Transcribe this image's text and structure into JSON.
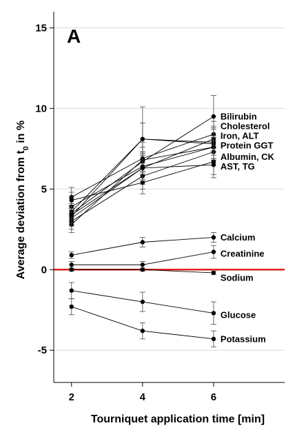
{
  "chart_data": {
    "type": "line",
    "panel_label": "A",
    "xlabel": "Tourniquet application time [min]",
    "ylabel": "Average deviation from t",
    "ylabel_sub": "0",
    "ylabel_suffix": " in %",
    "x": [
      2,
      4,
      6
    ],
    "xlim": [
      1.5,
      8
    ],
    "ylim": [
      -7,
      16
    ],
    "yticks": [
      -5,
      0,
      5,
      10,
      15
    ],
    "xticks": [
      2,
      4,
      6
    ],
    "grid": "horizontal",
    "zero_line_color": "#e0201b",
    "series": [
      {
        "name": "Bilirubin",
        "values": [
          3.5,
          6.7,
          9.5
        ],
        "err": [
          0.5,
          0.6,
          1.3
        ]
      },
      {
        "name": "Cholesterol",
        "values": [
          3.3,
          8.1,
          7.8
        ],
        "err": [
          0.5,
          2.0,
          1.0
        ]
      },
      {
        "name": "Iron",
        "values": [
          4.5,
          6.9,
          8.4
        ],
        "err": [
          0.6,
          1.0,
          0.8
        ]
      },
      {
        "name": "ALT",
        "values": [
          3.2,
          6.3,
          8.1
        ],
        "err": [
          0.5,
          1.0,
          0.8
        ]
      },
      {
        "name": "Protein",
        "values": [
          3.6,
          8.1,
          7.9
        ],
        "err": [
          0.5,
          1.0,
          0.8
        ]
      },
      {
        "name": "GGT",
        "values": [
          2.8,
          6.8,
          7.6
        ],
        "err": [
          0.5,
          0.8,
          0.7
        ]
      },
      {
        "name": "Albumin",
        "values": [
          3.9,
          6.4,
          7.6
        ],
        "err": [
          0.5,
          0.8,
          0.7
        ]
      },
      {
        "name": "CK",
        "values": [
          3.0,
          5.8,
          7.3
        ],
        "err": [
          0.5,
          0.8,
          0.7
        ]
      },
      {
        "name": "AST",
        "values": [
          4.3,
          5.4,
          6.7
        ],
        "err": [
          0.5,
          0.7,
          0.8
        ]
      },
      {
        "name": "TG",
        "values": [
          3.4,
          6.3,
          6.5
        ],
        "err": [
          0.5,
          0.8,
          0.8
        ]
      },
      {
        "name": "Calcium",
        "values": [
          0.9,
          1.7,
          2.0
        ],
        "err": [
          0.2,
          0.3,
          0.3
        ]
      },
      {
        "name": "Creatinine",
        "values": [
          0.3,
          0.3,
          1.1
        ],
        "err": [
          0.2,
          0.2,
          0.4
        ]
      },
      {
        "name": "Sodium",
        "values": [
          0.0,
          0.0,
          -0.2
        ],
        "err": [
          0.1,
          0.1,
          0.1
        ]
      },
      {
        "name": "Glucose",
        "values": [
          -1.3,
          -2.0,
          -2.7
        ],
        "err": [
          0.5,
          0.6,
          0.7
        ]
      },
      {
        "name": "Potassium",
        "values": [
          -2.3,
          -3.8,
          -4.3
        ],
        "err": [
          0.5,
          0.5,
          0.5
        ]
      }
    ],
    "labels": [
      {
        "text": "Bilirubin",
        "y": 9.5
      },
      {
        "text": "Cholesterol",
        "y": 8.9
      },
      {
        "text": "Iron, ALT",
        "y": 8.3
      },
      {
        "text": "Protein GGT",
        "y": 7.7
      },
      {
        "text": "Albumin, CK",
        "y": 7.0
      },
      {
        "text": "AST, TG",
        "y": 6.4
      },
      {
        "text": "Calcium",
        "y": 2.0
      },
      {
        "text": "Creatinine",
        "y": 1.0
      },
      {
        "text": "Sodium",
        "y": -0.5
      },
      {
        "text": "Glucose",
        "y": -2.8
      },
      {
        "text": "Potassium",
        "y": -4.3
      }
    ]
  }
}
